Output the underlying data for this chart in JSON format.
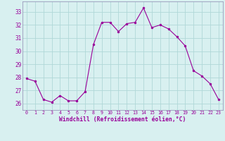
{
  "x": [
    0,
    1,
    2,
    3,
    4,
    5,
    6,
    7,
    8,
    9,
    10,
    11,
    12,
    13,
    14,
    15,
    16,
    17,
    18,
    19,
    20,
    21,
    22,
    23
  ],
  "y": [
    27.9,
    27.7,
    26.3,
    26.1,
    26.6,
    26.2,
    26.2,
    26.9,
    30.5,
    32.2,
    32.2,
    31.5,
    32.1,
    32.2,
    33.3,
    31.8,
    32.0,
    31.7,
    31.1,
    30.4,
    28.5,
    28.1,
    27.5,
    26.3
  ],
  "line_color": "#990099",
  "marker": "o",
  "marker_size": 2.0,
  "bg_color": "#d8f0f0",
  "grid_color": "#b0d8d8",
  "xlabel": "Windchill (Refroidissement éolien,°C)",
  "xlabel_color": "#990099",
  "tick_color": "#990099",
  "spine_color": "#9999bb",
  "ylim": [
    25.5,
    33.8
  ],
  "yticks": [
    26,
    27,
    28,
    29,
    30,
    31,
    32,
    33
  ],
  "xlim": [
    -0.5,
    23.5
  ],
  "figsize": [
    3.2,
    2.0
  ],
  "dpi": 100
}
